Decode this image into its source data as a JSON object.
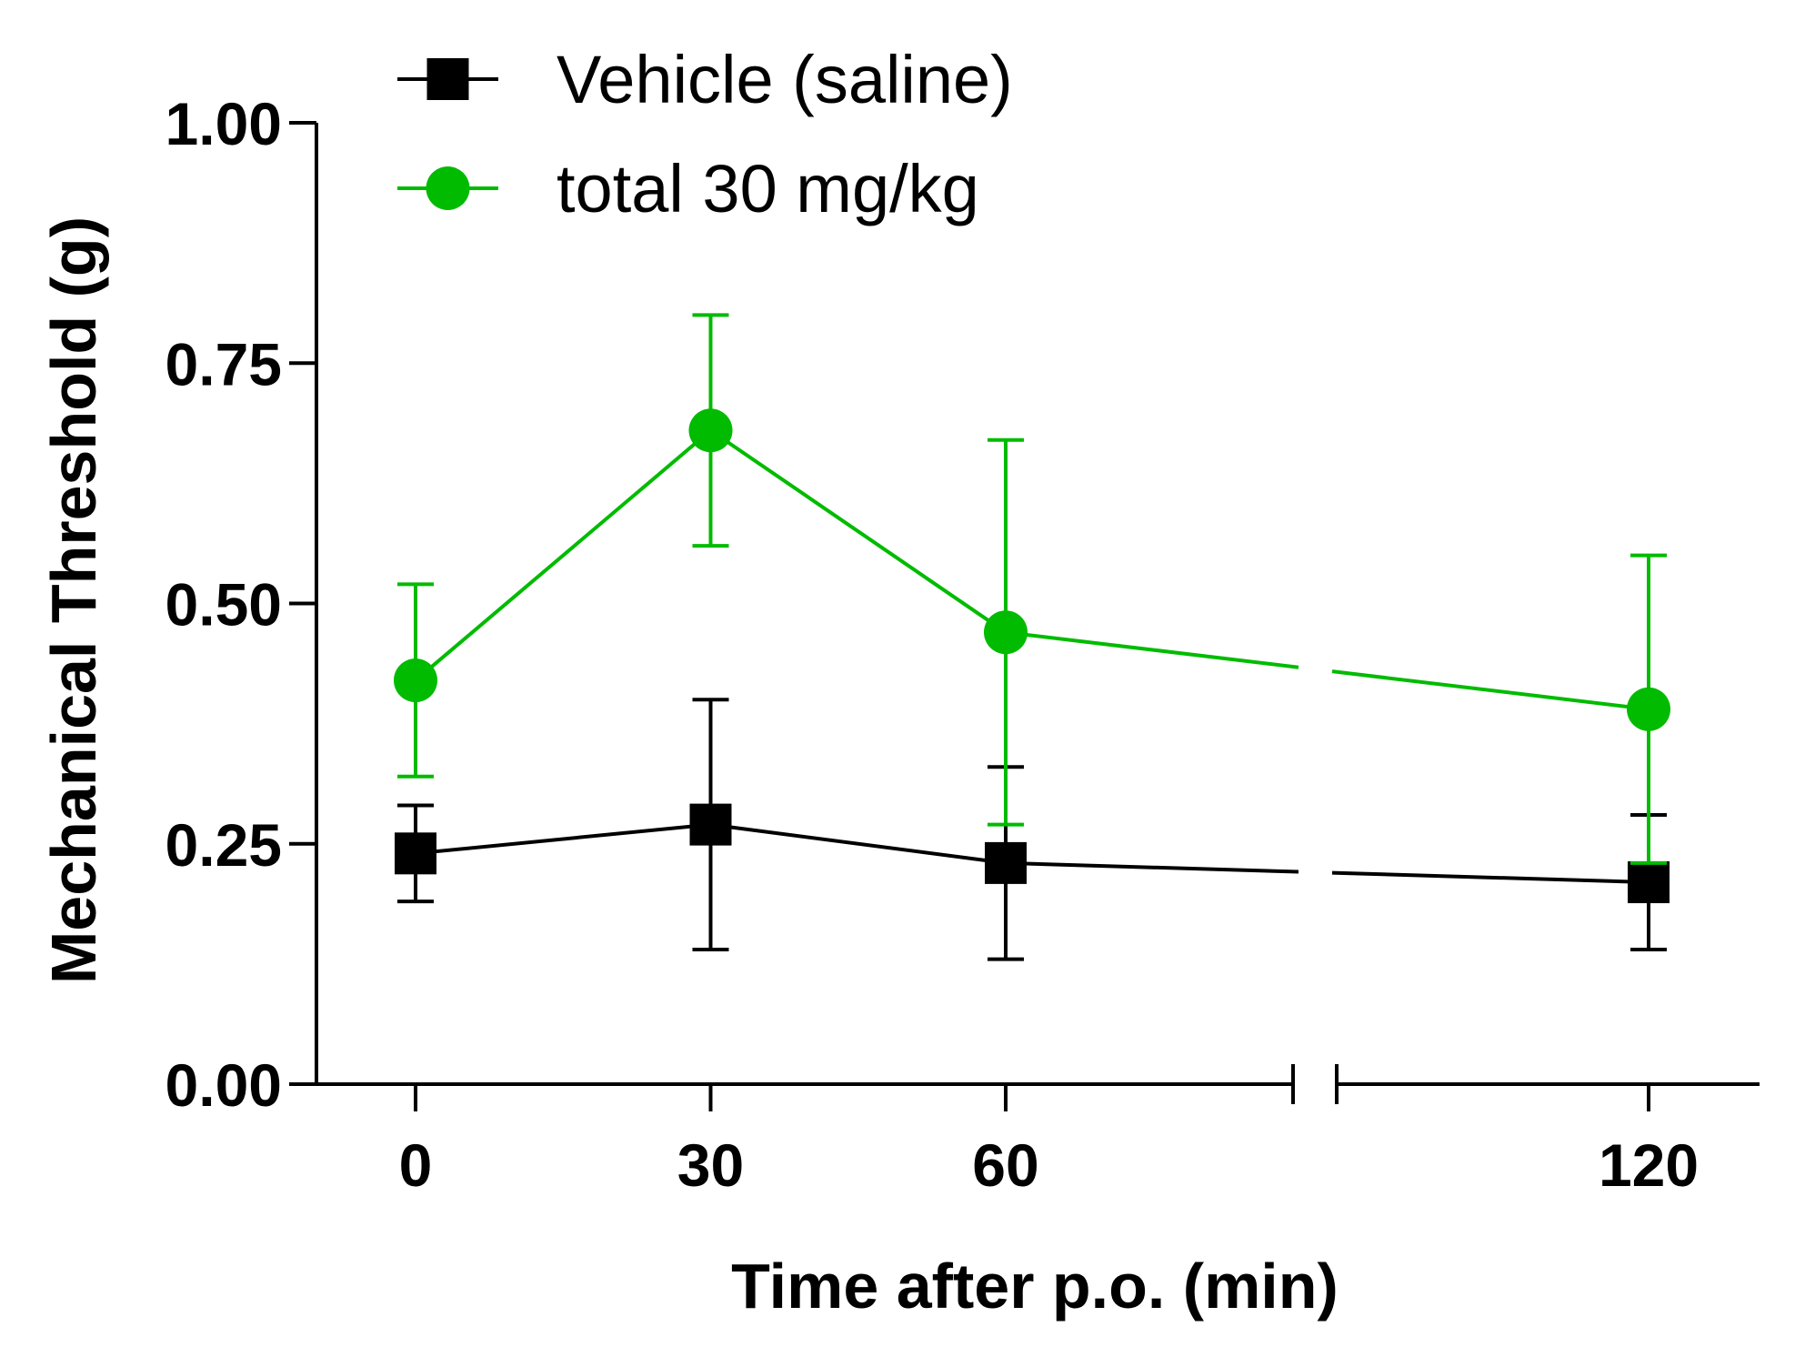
{
  "chart_data": {
    "type": "line",
    "title": "",
    "xlabel": "Time after p.o. (min)",
    "ylabel": "Mechanical Threshold (g)",
    "ylim": [
      0,
      1.0
    ],
    "yticks": [
      0.0,
      0.25,
      0.5,
      0.75,
      1.0
    ],
    "ytick_labels": [
      "0.00",
      "0.25",
      "0.50",
      "0.75",
      "1.00"
    ],
    "xticks": [
      0,
      30,
      60,
      120
    ],
    "xtick_labels": [
      "0",
      "30",
      "60",
      "120"
    ],
    "x_axis_break": "between 60 and 120",
    "legend_position": "top-left",
    "series": [
      {
        "name": "Vehicle (saline)",
        "color": "#000000",
        "marker": "square",
        "x": [
          0,
          30,
          60,
          120
        ],
        "y": [
          0.24,
          0.27,
          0.23,
          0.21
        ],
        "err_upper": [
          0.29,
          0.4,
          0.33,
          0.28
        ],
        "err_lower": [
          0.19,
          0.14,
          0.13,
          0.14
        ]
      },
      {
        "name": "total 30 mg/kg",
        "color": "#00bb00",
        "marker": "circle",
        "x": [
          0,
          30,
          60,
          120
        ],
        "y": [
          0.42,
          0.68,
          0.47,
          0.39
        ],
        "err_upper": [
          0.52,
          0.8,
          0.67,
          0.55
        ],
        "err_lower": [
          0.32,
          0.56,
          0.27,
          0.23
        ]
      }
    ]
  }
}
